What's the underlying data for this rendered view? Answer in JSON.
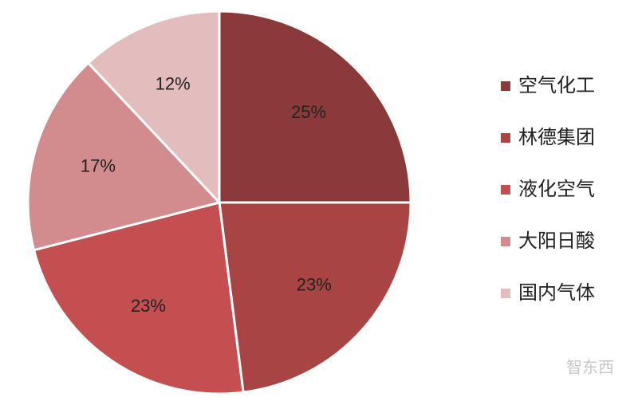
{
  "chart_data": {
    "type": "pie",
    "categories": [
      "空气化工",
      "林德集团",
      "液化空气",
      "大阳日酸",
      "国内气体"
    ],
    "values": [
      25,
      23,
      23,
      17,
      12
    ],
    "value_labels": [
      "25%",
      "23%",
      "23%",
      "17%",
      "12%"
    ],
    "colors": [
      "#8b3a3a",
      "#a84444",
      "#c44f50",
      "#d28c8d",
      "#e3bcbd"
    ],
    "legend": "right"
  },
  "watermark": "智东西"
}
